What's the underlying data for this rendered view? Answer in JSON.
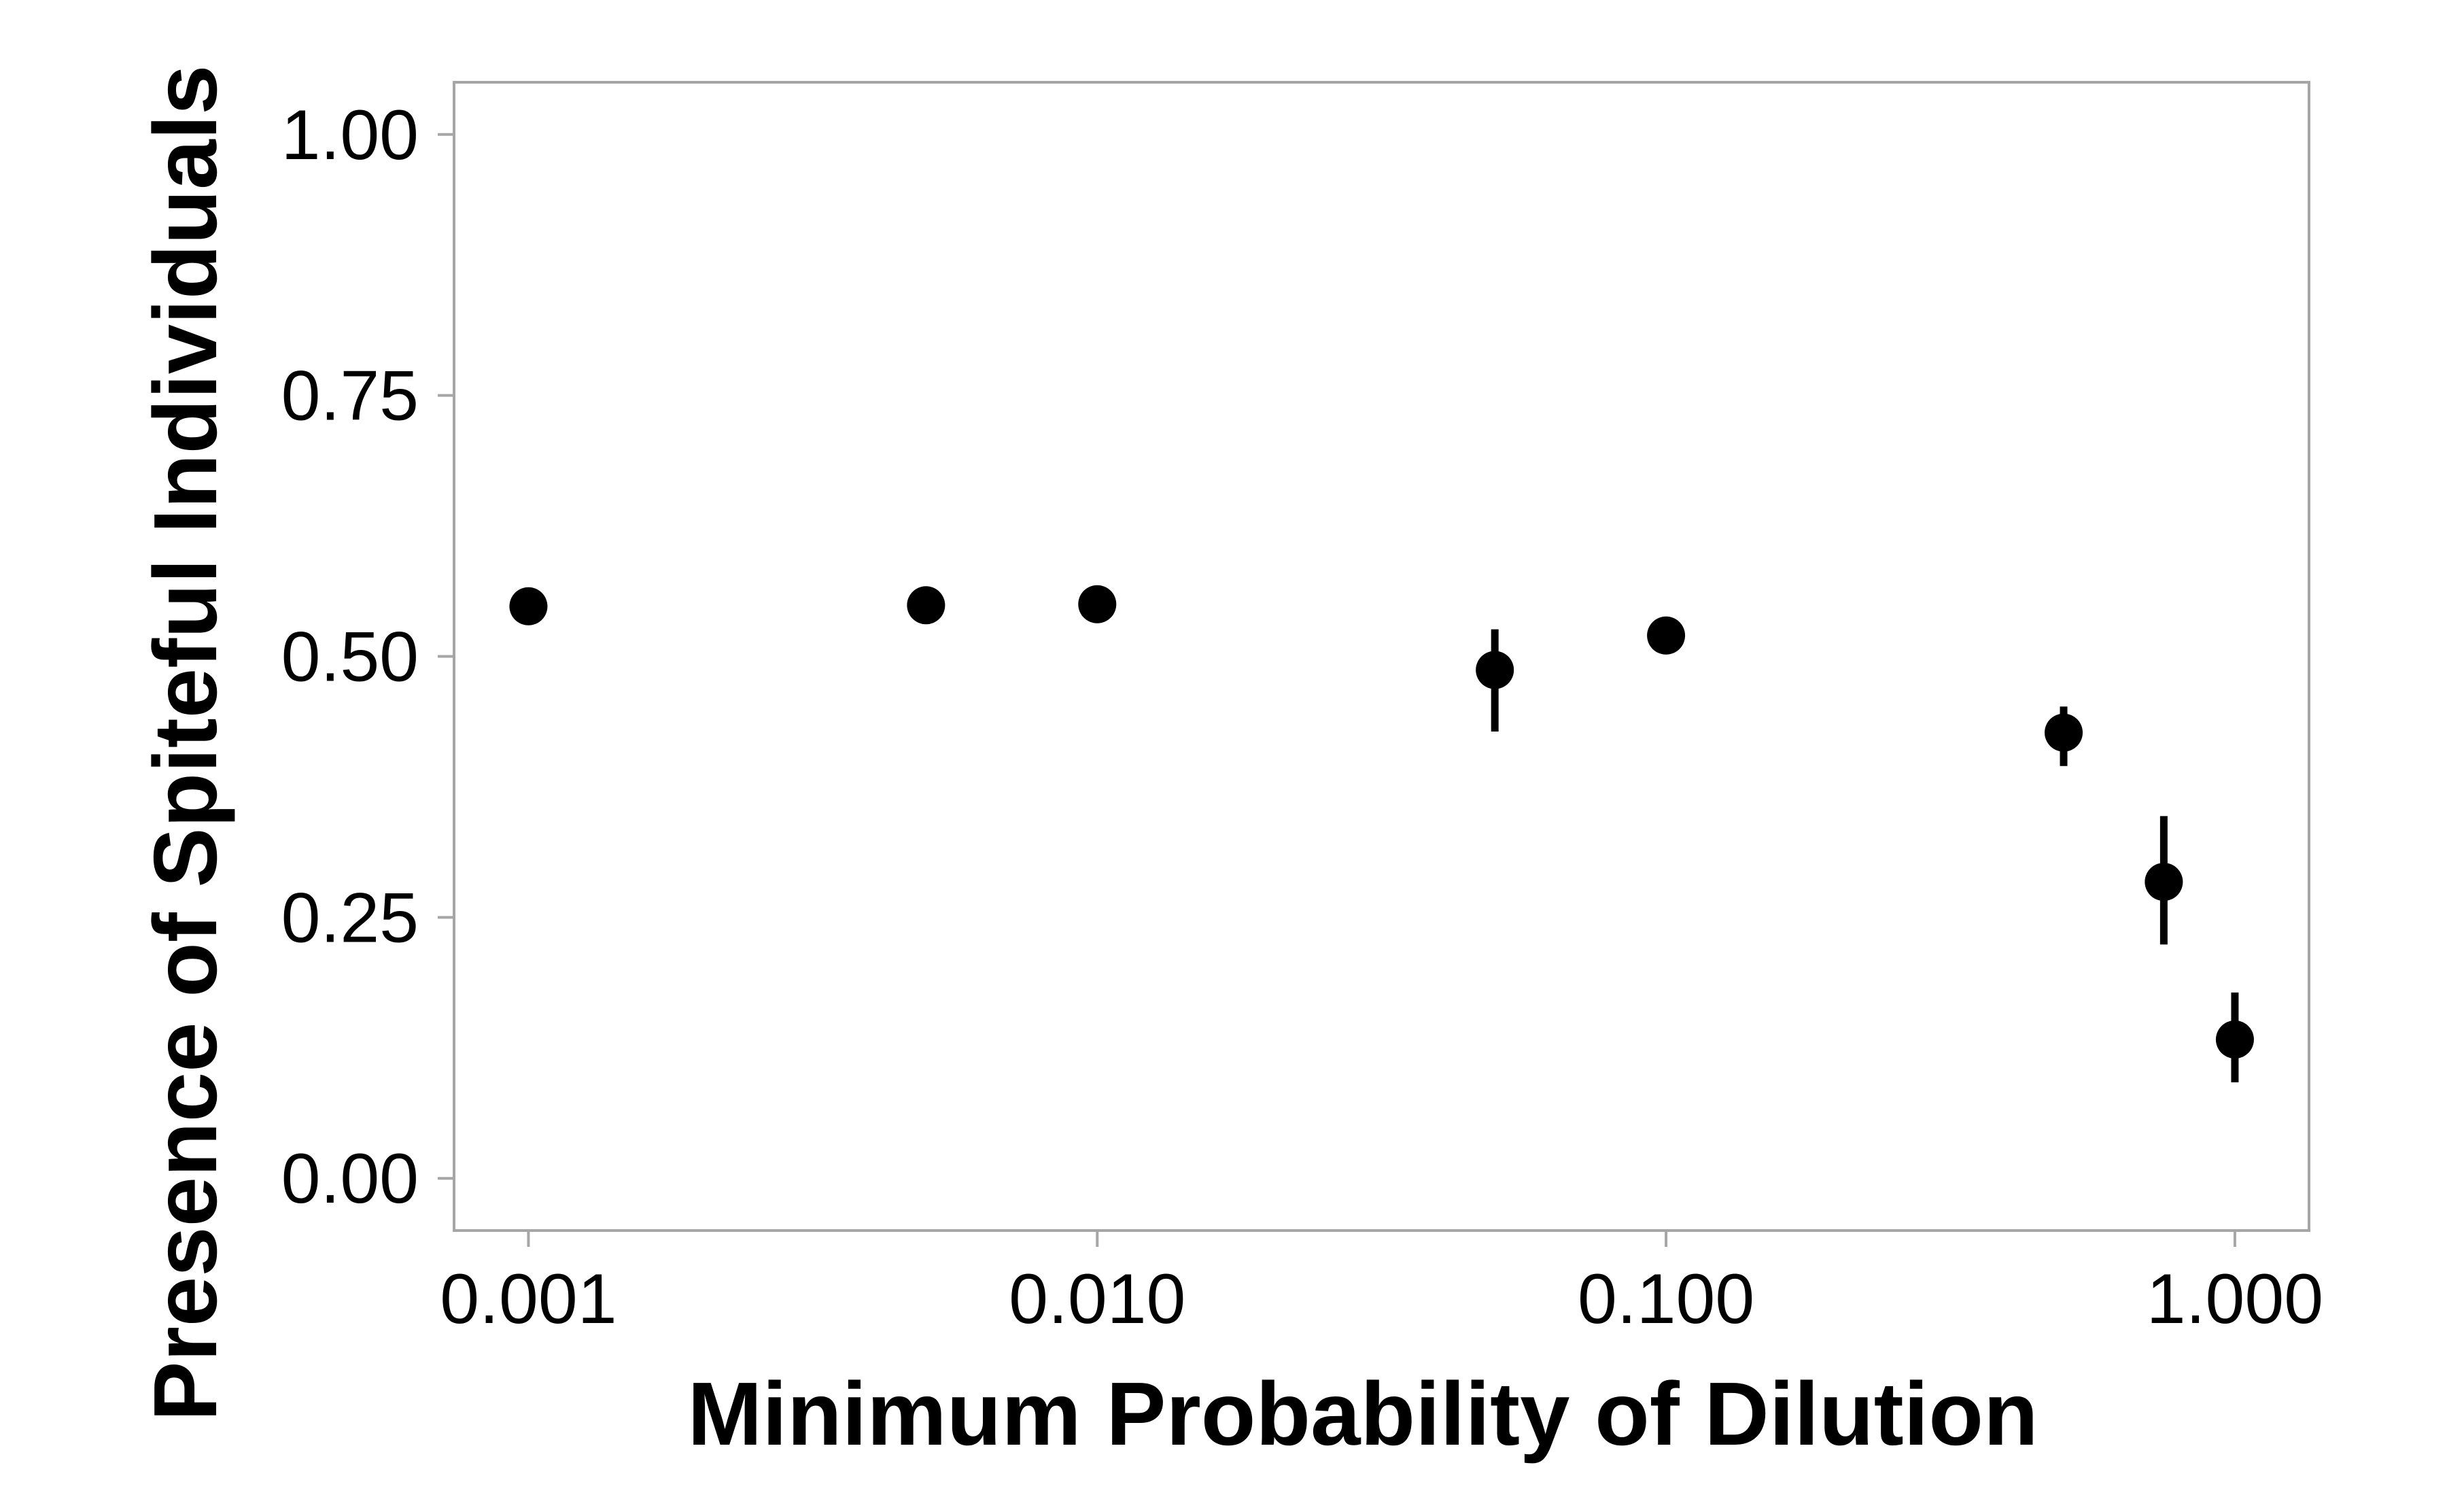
{
  "chart_data": {
    "type": "scatter",
    "title": "",
    "xlabel": "Minimum Probability of Dilution",
    "ylabel": "Presence of Spiteful Individuals",
    "x_scale": "log10",
    "xlim": [
      0.00074,
      1.35
    ],
    "ylim": [
      -0.05,
      1.05
    ],
    "x_ticks": [
      0.001,
      0.01,
      0.1,
      1.0
    ],
    "x_tick_labels": [
      "0.001",
      "0.010",
      "0.100",
      "1.000"
    ],
    "y_ticks": [
      0,
      0.25,
      0.5,
      0.75,
      1.0
    ],
    "y_tick_labels": [
      "0.00",
      "0.25",
      "0.50",
      "0.75",
      "1.00"
    ],
    "grid": false,
    "legend": "none",
    "point_color": "#000000",
    "frame_color": "#a6a6a6",
    "points": [
      {
        "x": 0.001,
        "y": 0.548,
        "ymin": 0.542,
        "ymax": 0.554
      },
      {
        "x": 0.005,
        "y": 0.549,
        "ymin": 0.531,
        "ymax": 0.557
      },
      {
        "x": 0.01,
        "y": 0.55,
        "ymin": 0.544,
        "ymax": 0.556
      },
      {
        "x": 0.05,
        "y": 0.487,
        "ymin": 0.428,
        "ymax": 0.526
      },
      {
        "x": 0.1,
        "y": 0.52,
        "ymin": 0.514,
        "ymax": 0.526
      },
      {
        "x": 0.5,
        "y": 0.427,
        "ymin": 0.395,
        "ymax": 0.452
      },
      {
        "x": 0.75,
        "y": 0.284,
        "ymin": 0.224,
        "ymax": 0.347
      },
      {
        "x": 1.0,
        "y": 0.133,
        "ymin": 0.092,
        "ymax": 0.178
      }
    ]
  }
}
